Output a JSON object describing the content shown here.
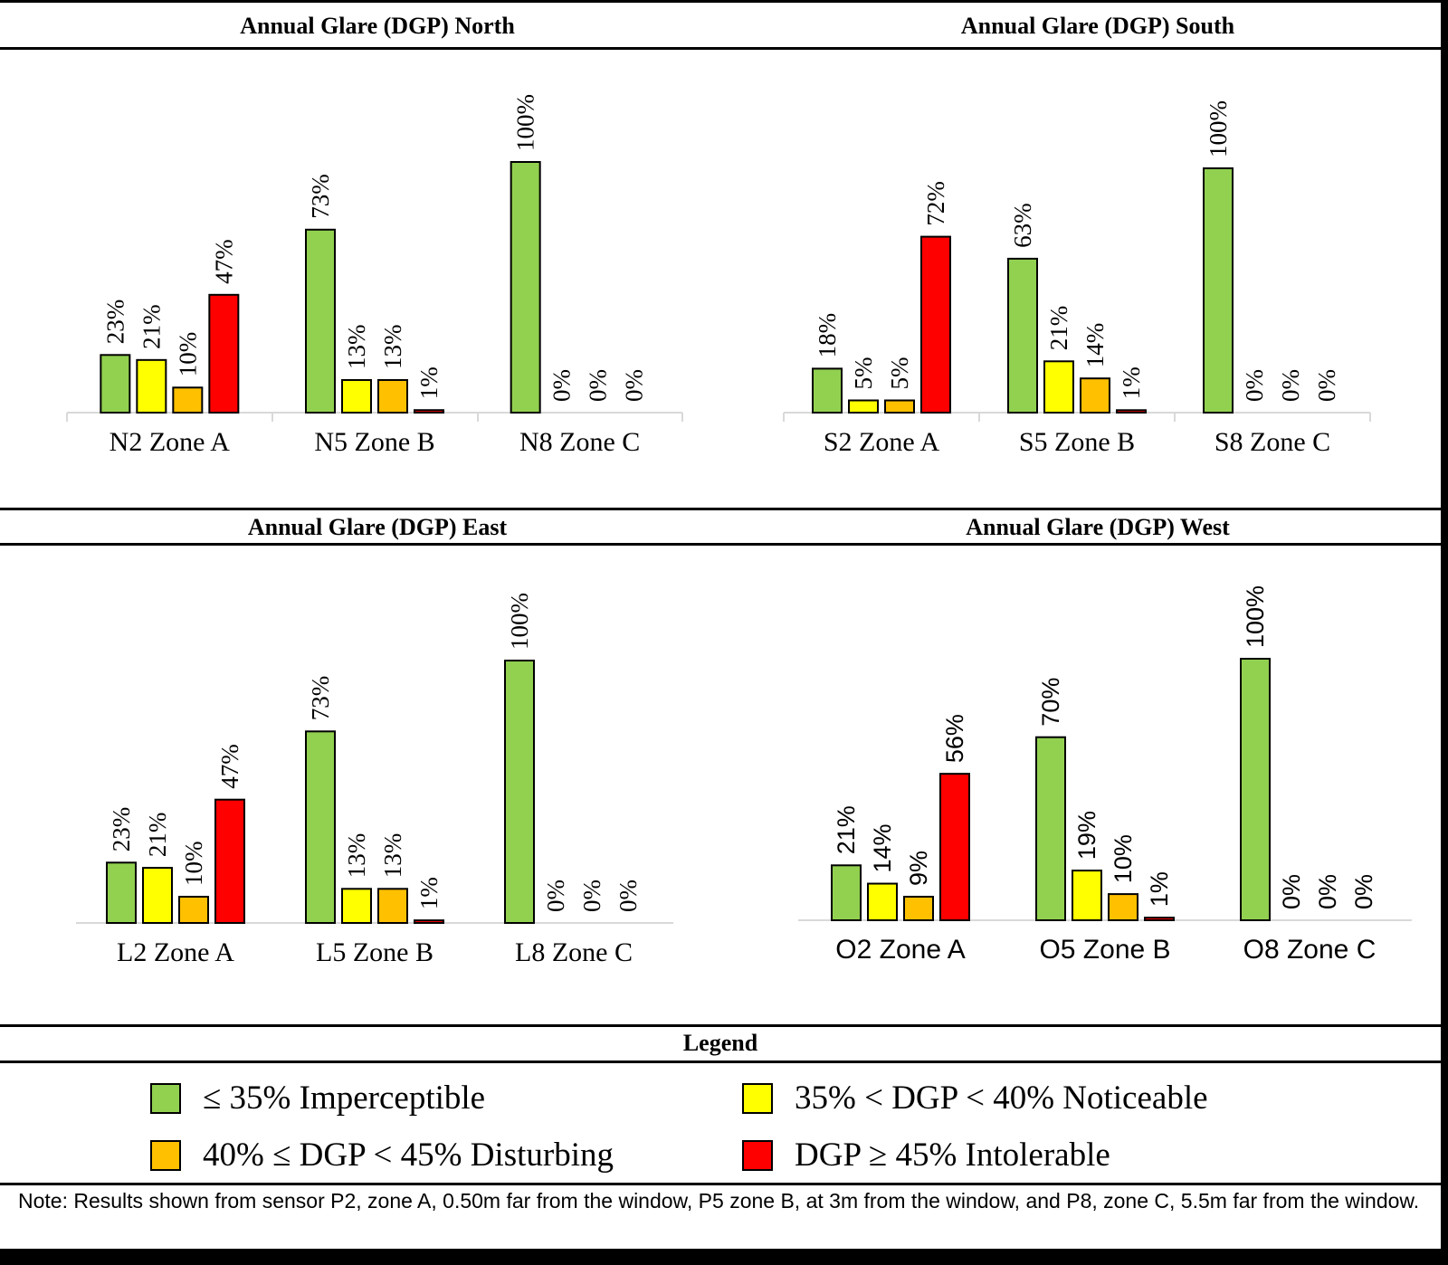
{
  "legend": {
    "title": "Legend",
    "items": [
      {
        "label": "≤ 35% Imperceptible",
        "color": "#92d050"
      },
      {
        "label": "35% < DGP <  40% Noticeable",
        "color": "#ffff00"
      },
      {
        "label": "40% ≤ DGP < 45% Disturbing",
        "color": "#ffc000"
      },
      {
        "label": "DGP ≥ 45% Intolerable",
        "color": "#ff0000"
      }
    ]
  },
  "note": "Note: Results shown from sensor P2, zone A, 0.50m far from the window, P5 zone B, at 3m from the window, and P8, zone C, 5.5m far from the window.",
  "chart_data": [
    {
      "type": "bar",
      "title": "Annual Glare (DGP) North",
      "categories": [
        "N2 Zone A",
        "N5 Zone B",
        "N8 Zone C"
      ],
      "label_font": "serif",
      "series": [
        {
          "name": "≤ 35% Imperceptible",
          "color": "#92d050",
          "values": [
            23,
            73,
            100
          ],
          "labels": [
            "23%",
            "73%",
            "100%"
          ]
        },
        {
          "name": "35% < DGP <  40% Noticeable",
          "color": "#ffff00",
          "values": [
            21,
            13,
            0
          ],
          "labels": [
            "21%",
            "13%",
            "0%"
          ]
        },
        {
          "name": "40% ≤ DGP < 45% Disturbing",
          "color": "#ffc000",
          "values": [
            10,
            13,
            0
          ],
          "labels": [
            "10%",
            "13%",
            "0%"
          ]
        },
        {
          "name": "DGP ≥ 45% Intolerable",
          "color": "#ff0000",
          "values": [
            47,
            1,
            0
          ],
          "labels": [
            "47%",
            "1%",
            "0%"
          ]
        }
      ],
      "ylim": [
        0,
        100
      ]
    },
    {
      "type": "bar",
      "title": "Annual Glare (DGP) South",
      "categories": [
        "S2 Zone A",
        "S5 Zone B",
        "S8 Zone C"
      ],
      "label_font": "serif",
      "series": [
        {
          "name": "≤ 35% Imperceptible",
          "color": "#92d050",
          "values": [
            18,
            63,
            100
          ],
          "labels": [
            "18%",
            "63%",
            "100%"
          ]
        },
        {
          "name": "35% < DGP <  40% Noticeable",
          "color": "#ffff00",
          "values": [
            5,
            21,
            0
          ],
          "labels": [
            "5%",
            "21%",
            "0%"
          ]
        },
        {
          "name": "40% ≤ DGP < 45% Disturbing",
          "color": "#ffc000",
          "values": [
            5,
            14,
            0
          ],
          "labels": [
            "5%",
            "14%",
            "0%"
          ]
        },
        {
          "name": "DGP ≥ 45% Intolerable",
          "color": "#ff0000",
          "values": [
            72,
            1,
            0
          ],
          "labels": [
            "72%",
            "1%",
            "0%"
          ]
        }
      ],
      "ylim": [
        0,
        100
      ]
    },
    {
      "type": "bar",
      "title": "Annual Glare (DGP) East",
      "categories": [
        "L2 Zone A",
        "L5 Zone B",
        "L8 Zone C"
      ],
      "label_font": "serif",
      "series": [
        {
          "name": "≤ 35% Imperceptible",
          "color": "#92d050",
          "values": [
            23,
            73,
            100
          ],
          "labels": [
            "23%",
            "73%",
            "100%"
          ]
        },
        {
          "name": "35% < DGP <  40% Noticeable",
          "color": "#ffff00",
          "values": [
            21,
            13,
            0
          ],
          "labels": [
            "21%",
            "13%",
            "0%"
          ]
        },
        {
          "name": "40% ≤ DGP < 45% Disturbing",
          "color": "#ffc000",
          "values": [
            10,
            13,
            0
          ],
          "labels": [
            "10%",
            "13%",
            "0%"
          ]
        },
        {
          "name": "DGP ≥ 45% Intolerable",
          "color": "#ff0000",
          "values": [
            47,
            1,
            0
          ],
          "labels": [
            "47%",
            "1%",
            "0%"
          ]
        }
      ],
      "ylim": [
        0,
        100
      ]
    },
    {
      "type": "bar",
      "title": "Annual Glare (DGP) West",
      "categories": [
        "O2 Zone A",
        "O5 Zone B",
        "O8 Zone C"
      ],
      "label_font": "sans",
      "series": [
        {
          "name": "≤ 35% Imperceptible",
          "color": "#92d050",
          "values": [
            21,
            70,
            100
          ],
          "labels": [
            "21%",
            "70%",
            "100%"
          ]
        },
        {
          "name": "35% < DGP <  40% Noticeable",
          "color": "#ffff00",
          "values": [
            14,
            19,
            0
          ],
          "labels": [
            "14%",
            "19%",
            "0%"
          ]
        },
        {
          "name": "40% ≤ DGP < 45% Disturbing",
          "color": "#ffc000",
          "values": [
            9,
            10,
            0
          ],
          "labels": [
            "9%",
            "10%",
            "0%"
          ]
        },
        {
          "name": "DGP ≥ 45% Intolerable",
          "color": "#ff0000",
          "values": [
            56,
            1,
            0
          ],
          "labels": [
            "56%",
            "1%",
            "0%"
          ]
        }
      ],
      "ylim": [
        0,
        100
      ]
    }
  ]
}
